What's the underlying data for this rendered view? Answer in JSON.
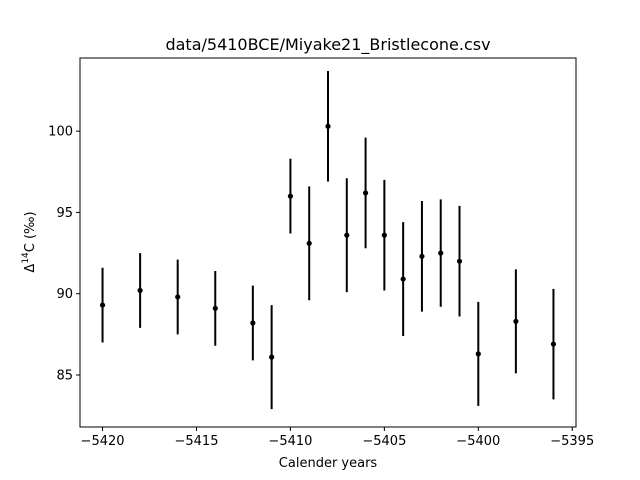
{
  "chart_data": {
    "type": "scatter",
    "title": "data/5410BCE/Miyake21_Bristlecone.csv",
    "xlabel": "Calender years",
    "ylabel": {
      "prefix": "Δ",
      "superscript": "14",
      "suffix": "C (‰)"
    },
    "xlim": [
      -5421.2,
      -5394.8
    ],
    "ylim": [
      81.8,
      104.5
    ],
    "xticks": [
      -5420,
      -5415,
      -5410,
      -5405,
      -5400,
      -5395
    ],
    "xtick_labels": [
      "−5420",
      "−5415",
      "−5410",
      "−5405",
      "−5400",
      "−5395"
    ],
    "yticks": [
      85,
      90,
      95,
      100
    ],
    "ytick_labels": [
      "85",
      "90",
      "95",
      "100"
    ],
    "grid": false,
    "marker_color": "#000000",
    "points": [
      {
        "x": -5420,
        "y": 89.3,
        "err": 2.3
      },
      {
        "x": -5418,
        "y": 90.2,
        "err": 2.3
      },
      {
        "x": -5416,
        "y": 89.8,
        "err": 2.3
      },
      {
        "x": -5414,
        "y": 89.1,
        "err": 2.3
      },
      {
        "x": -5412,
        "y": 88.2,
        "err": 2.3
      },
      {
        "x": -5411,
        "y": 86.1,
        "err": 3.2
      },
      {
        "x": -5410,
        "y": 96.0,
        "err": 2.3
      },
      {
        "x": -5409,
        "y": 93.1,
        "err": 3.5
      },
      {
        "x": -5408,
        "y": 100.3,
        "err": 3.4
      },
      {
        "x": -5407,
        "y": 93.6,
        "err": 3.5
      },
      {
        "x": -5406,
        "y": 96.2,
        "err": 3.4
      },
      {
        "x": -5405,
        "y": 93.6,
        "err": 3.4
      },
      {
        "x": -5404,
        "y": 90.9,
        "err": 3.5
      },
      {
        "x": -5403,
        "y": 92.3,
        "err": 3.4
      },
      {
        "x": -5402,
        "y": 92.5,
        "err": 3.3
      },
      {
        "x": -5401,
        "y": 92.0,
        "err": 3.4
      },
      {
        "x": -5400,
        "y": 86.3,
        "err": 3.2
      },
      {
        "x": -5398,
        "y": 88.3,
        "err": 3.2
      },
      {
        "x": -5396,
        "y": 86.9,
        "err": 3.4
      }
    ]
  }
}
